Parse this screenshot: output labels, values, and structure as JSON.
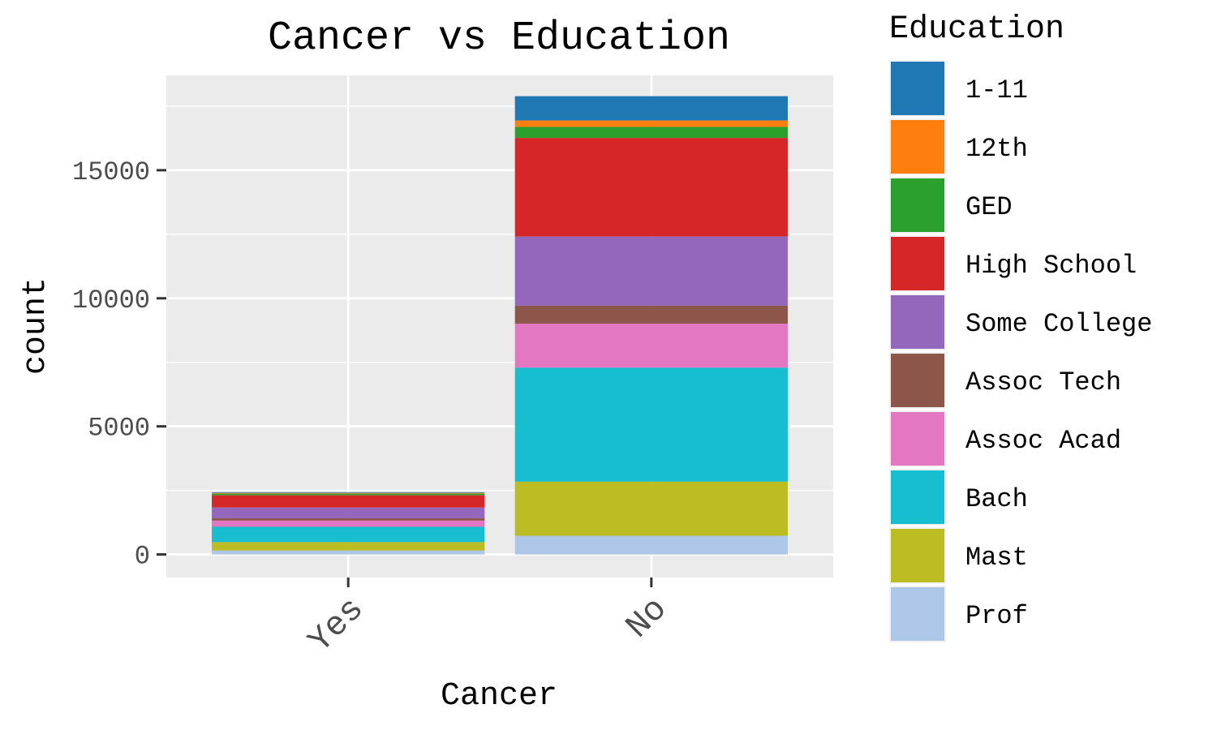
{
  "chart_data": {
    "type": "bar",
    "stacked": true,
    "title": "Cancer vs Education",
    "xlabel": "Cancer",
    "ylabel": "count",
    "categories": [
      "Yes",
      "No"
    ],
    "ylim": [
      -900,
      18700
    ],
    "y_ticks": [
      0,
      5000,
      10000,
      15000
    ],
    "y_tick_labels": [
      "0",
      "5000",
      "10000",
      "15000"
    ],
    "grid": true,
    "legend_position": "right",
    "legend_title": "Education",
    "series": [
      {
        "name": "1-11",
        "color": "#1f77b4",
        "values": [
          30,
          950
        ]
      },
      {
        "name": "12th",
        "color": "#ff7f0e",
        "values": [
          30,
          250
        ]
      },
      {
        "name": "GED",
        "color": "#2ca02c",
        "values": [
          60,
          430
        ]
      },
      {
        "name": "High School",
        "color": "#d62728",
        "values": [
          480,
          3850
        ]
      },
      {
        "name": "Some College",
        "color": "#9467bd",
        "values": [
          420,
          2700
        ]
      },
      {
        "name": "Assoc Tech",
        "color": "#8c564b",
        "values": [
          90,
          700
        ]
      },
      {
        "name": "Assoc Acad",
        "color": "#e377c2",
        "values": [
          240,
          1720
        ]
      },
      {
        "name": "Bach",
        "color": "#17becf",
        "values": [
          600,
          4450
        ]
      },
      {
        "name": "Mast",
        "color": "#bcbd22",
        "values": [
          330,
          2110
        ]
      },
      {
        "name": "Prof",
        "color": "#aec7e8",
        "values": [
          150,
          730
        ]
      }
    ]
  }
}
